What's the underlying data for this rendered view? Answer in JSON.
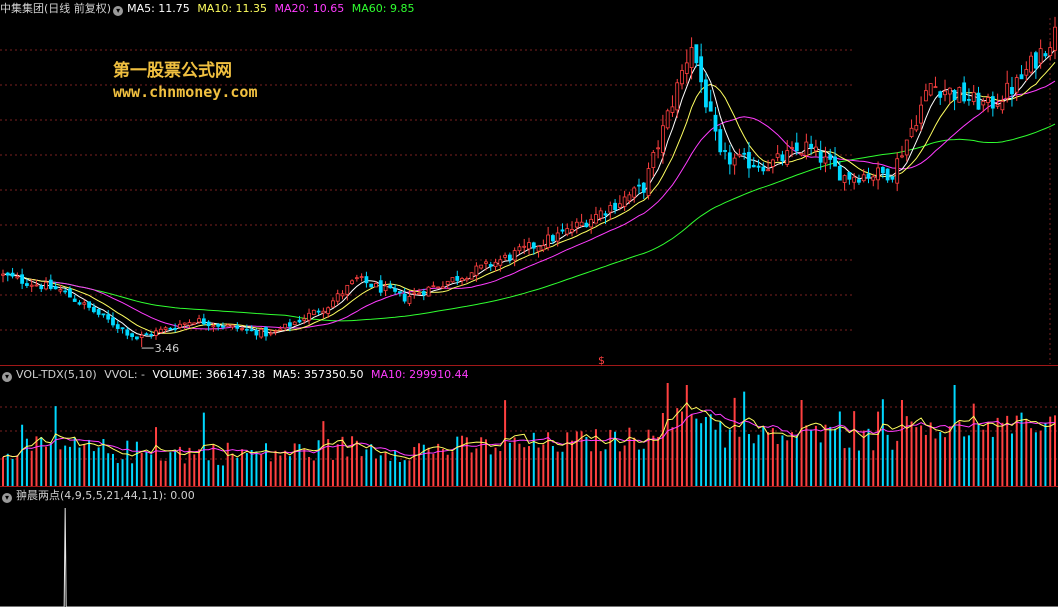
{
  "colors": {
    "bg": "#000000",
    "grid": "#7a1f1f",
    "separator": "#a01818",
    "up": "#ff4040",
    "down": "#00d8ff",
    "ma5": "#ffffff",
    "ma10": "#ffff60",
    "ma20": "#ff3cff",
    "ma60": "#30ff30",
    "label": "#c8c8c8",
    "watermark": "#f0c040"
  },
  "watermark": {
    "cn": "第一股票公式网",
    "url": "www.chnmoney.com"
  },
  "price_header": {
    "title": "中集集团(日线 前复权)",
    "ma5": "MA5: 11.75",
    "ma10": "MA10: 11.35",
    "ma20": "MA20: 10.65",
    "ma60": "MA60: 9.85"
  },
  "vol_header": {
    "name": "VOL-TDX(5,10)",
    "vvol": "VVOL: -",
    "volume": "VOLUME: 366147.38",
    "ma5": "MA5: 357350.50",
    "ma10": "MA10: 299910.44"
  },
  "ind_header": {
    "name": "翀晨两点(4,9,5,5,21,44,1,1)",
    "value": ": 0.00"
  },
  "annotations": {
    "low_label": "3.46",
    "signal_mark": "$"
  },
  "chart_data": [
    {
      "type": "candlestick",
      "title": "中集集团(日线 前复权)",
      "low_point": 3.46,
      "final_ma": {
        "MA5": 11.75,
        "MA10": 11.35,
        "MA20": 10.65,
        "MA60": 9.85
      },
      "price_path_keypoints": [
        [
          0,
          5.4
        ],
        [
          12,
          5.0
        ],
        [
          28,
          3.7
        ],
        [
          40,
          4.2
        ],
        [
          56,
          3.8
        ],
        [
          68,
          4.6
        ],
        [
          74,
          5.3
        ],
        [
          84,
          4.8
        ],
        [
          100,
          5.6
        ],
        [
          118,
          6.6
        ],
        [
          134,
          7.8
        ],
        [
          144,
          11.7
        ],
        [
          150,
          8.6
        ],
        [
          160,
          8.4
        ],
        [
          168,
          8.9
        ],
        [
          176,
          8.1
        ],
        [
          186,
          8.2
        ],
        [
          194,
          10.6
        ],
        [
          206,
          10.0
        ],
        [
          212,
          10.6
        ],
        [
          220,
          12.0
        ]
      ]
    },
    {
      "type": "bar",
      "title": "VOL-TDX(5,10)",
      "last": {
        "VOLUME": 366147.38,
        "MA5": 357350.5,
        "MA10": 299910.44
      }
    },
    {
      "type": "line",
      "title": "翀晨两点(4,9,5,5,21,44,1,1)",
      "last_value": 0.0,
      "spike_bar_index": 13
    }
  ]
}
